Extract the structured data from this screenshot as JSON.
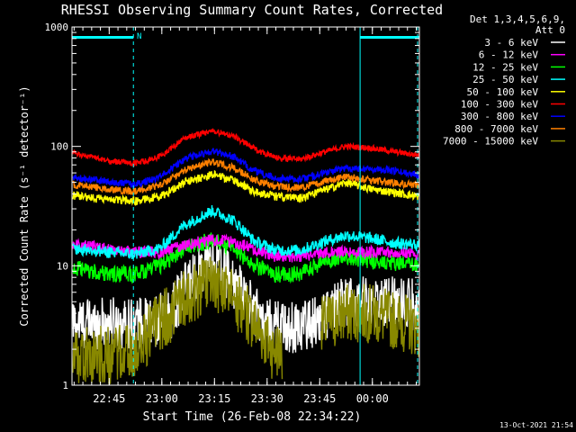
{
  "chart_data": {
    "type": "line",
    "title": "RHESSI Observing Summary Count Rates, Corrected",
    "xlabel": "Start Time (26-Feb-08 22:34:22)",
    "ylabel": "Corrected Count Rate (s⁻¹ detector⁻¹)",
    "yscale": "log",
    "ylim": [
      1,
      1000
    ],
    "xlim": [
      0,
      99
    ],
    "x_unit": "minutes after 22:34:22",
    "y_ticks": [
      {
        "v": 1,
        "label": "1"
      },
      {
        "v": 10,
        "label": "10"
      },
      {
        "v": 100,
        "label": "100"
      },
      {
        "v": 1000,
        "label": "1000"
      }
    ],
    "x_ticks": [
      {
        "v": 10.6,
        "label": "22:45"
      },
      {
        "v": 25.6,
        "label": "23:00"
      },
      {
        "v": 40.6,
        "label": "23:15"
      },
      {
        "v": 55.6,
        "label": "23:30"
      },
      {
        "v": 70.6,
        "label": "23:45"
      },
      {
        "v": 85.6,
        "label": "00:00"
      }
    ],
    "legend_header": [
      "Det 1,3,4,5,6,9,",
      "Att 0"
    ],
    "legend_position": "right",
    "series": [
      {
        "name": "3 - 6 keV",
        "color": "#ffffff",
        "points": [
          [
            0,
            3.3
          ],
          [
            16,
            3.3
          ],
          [
            23,
            3.3
          ],
          [
            28,
            4
          ],
          [
            33,
            7
          ],
          [
            38,
            10.5
          ],
          [
            41,
            10.8
          ],
          [
            45,
            8
          ],
          [
            50,
            5
          ],
          [
            55,
            3.3
          ],
          [
            62,
            3
          ],
          [
            70,
            3.5
          ],
          [
            78,
            5
          ],
          [
            85,
            5
          ],
          [
            95,
            5
          ],
          [
            99,
            4.5
          ]
        ],
        "noise": 0.22,
        "gaps": []
      },
      {
        "name": "6 - 12 keV",
        "color": "#ff00ff",
        "points": [
          [
            0,
            15
          ],
          [
            10,
            14
          ],
          [
            18,
            13
          ],
          [
            25,
            13
          ],
          [
            32,
            15
          ],
          [
            40,
            16.5
          ],
          [
            46,
            16
          ],
          [
            52,
            13.5
          ],
          [
            58,
            12
          ],
          [
            65,
            12
          ],
          [
            72,
            13
          ],
          [
            78,
            13
          ],
          [
            85,
            13
          ],
          [
            92,
            13
          ],
          [
            99,
            12.5
          ]
        ],
        "noise": 0.05,
        "gaps": []
      },
      {
        "name": "12 - 25 keV",
        "color": "#00ff00",
        "points": [
          [
            0,
            9.5
          ],
          [
            10,
            8.5
          ],
          [
            18,
            8.5
          ],
          [
            25,
            10
          ],
          [
            32,
            14
          ],
          [
            40,
            16.5
          ],
          [
            46,
            14
          ],
          [
            52,
            10
          ],
          [
            58,
            8.5
          ],
          [
            65,
            8.5
          ],
          [
            72,
            11
          ],
          [
            78,
            12
          ],
          [
            85,
            11
          ],
          [
            92,
            10.5
          ],
          [
            99,
            10
          ]
        ],
        "noise": 0.07,
        "gaps": []
      },
      {
        "name": "25 - 50 keV",
        "color": "#00ffff",
        "points": [
          [
            0,
            14
          ],
          [
            10,
            13
          ],
          [
            18,
            12.5
          ],
          [
            25,
            14
          ],
          [
            32,
            22
          ],
          [
            40,
            29
          ],
          [
            46,
            24
          ],
          [
            52,
            16
          ],
          [
            58,
            13.5
          ],
          [
            65,
            13.5
          ],
          [
            72,
            16
          ],
          [
            78,
            18
          ],
          [
            85,
            17
          ],
          [
            92,
            15.5
          ],
          [
            99,
            15
          ]
        ],
        "noise": 0.05,
        "gaps": []
      },
      {
        "name": "50 - 100 keV",
        "color": "#ffff00",
        "points": [
          [
            0,
            39
          ],
          [
            10,
            36
          ],
          [
            18,
            35
          ],
          [
            25,
            38
          ],
          [
            32,
            50
          ],
          [
            40,
            58
          ],
          [
            46,
            52
          ],
          [
            52,
            42
          ],
          [
            58,
            38
          ],
          [
            65,
            37
          ],
          [
            72,
            43
          ],
          [
            78,
            50
          ],
          [
            85,
            44
          ],
          [
            92,
            41
          ],
          [
            99,
            38
          ]
        ],
        "noise": 0.035,
        "gaps": []
      },
      {
        "name": "100 - 300 keV",
        "color": "#ff0000",
        "points": [
          [
            0,
            88
          ],
          [
            10,
            76
          ],
          [
            18,
            72
          ],
          [
            25,
            82
          ],
          [
            32,
            118
          ],
          [
            40,
            135
          ],
          [
            46,
            122
          ],
          [
            52,
            95
          ],
          [
            58,
            80
          ],
          [
            65,
            78
          ],
          [
            72,
            90
          ],
          [
            78,
            100
          ],
          [
            85,
            97
          ],
          [
            92,
            90
          ],
          [
            99,
            84
          ]
        ],
        "noise": 0.025,
        "gaps": []
      },
      {
        "name": "300 - 800 keV",
        "color": "#0000ff",
        "points": [
          [
            0,
            55
          ],
          [
            10,
            51
          ],
          [
            18,
            48
          ],
          [
            25,
            55
          ],
          [
            32,
            78
          ],
          [
            40,
            92
          ],
          [
            46,
            82
          ],
          [
            52,
            62
          ],
          [
            58,
            54
          ],
          [
            65,
            53
          ],
          [
            72,
            60
          ],
          [
            78,
            66
          ],
          [
            85,
            65
          ],
          [
            92,
            62
          ],
          [
            99,
            58
          ]
        ],
        "noise": 0.03,
        "gaps": []
      },
      {
        "name": "800 - 7000 keV",
        "color": "#ff8000",
        "points": [
          [
            0,
            48
          ],
          [
            10,
            44
          ],
          [
            18,
            42
          ],
          [
            25,
            47
          ],
          [
            32,
            63
          ],
          [
            40,
            74
          ],
          [
            46,
            66
          ],
          [
            52,
            52
          ],
          [
            58,
            46
          ],
          [
            65,
            45
          ],
          [
            72,
            51
          ],
          [
            78,
            56
          ],
          [
            85,
            52
          ],
          [
            92,
            49
          ],
          [
            99,
            47
          ]
        ],
        "noise": 0.03,
        "gaps": []
      },
      {
        "name": "7000 - 15000 keV",
        "color": "#888800",
        "points": [
          [
            0,
            1.8
          ],
          [
            17,
            1.8
          ],
          [
            23,
            3
          ],
          [
            28,
            4
          ],
          [
            33,
            5.5
          ],
          [
            38,
            7
          ],
          [
            42,
            6.5
          ],
          [
            47,
            5
          ],
          [
            52,
            3.3
          ],
          [
            57,
            2
          ],
          [
            67,
            2
          ],
          [
            70,
            3
          ],
          [
            78,
            4
          ],
          [
            85,
            4
          ],
          [
            95,
            3.3
          ],
          [
            99,
            3
          ]
        ],
        "noise": 0.25,
        "gaps": [
          [
            60,
            71
          ]
        ]
      }
    ],
    "vertical_markers": {
      "color": "#00ffff",
      "solid_lines": [
        0,
        82.1
      ],
      "dashed_lines": [
        17.5,
        99
      ]
    },
    "top_bars": [
      {
        "from": 0,
        "to": 17.5,
        "color": "#00ffff",
        "label": ""
      },
      {
        "from": 82.1,
        "to": 99,
        "color": "#00ffff",
        "label": ""
      }
    ],
    "top_bar_marker": {
      "label": "N",
      "x": 20
    }
  },
  "timestamp": "13-Oct-2021 21:54"
}
